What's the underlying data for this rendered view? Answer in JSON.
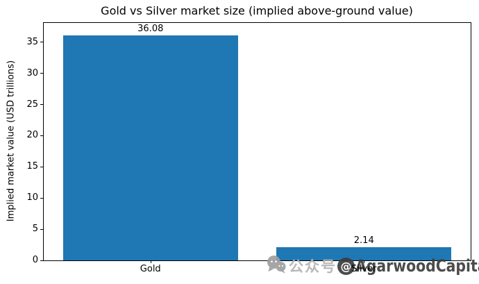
{
  "chart_data": {
    "type": "bar",
    "title": "Gold vs Silver market size (implied above-ground value)",
    "categories": [
      "Gold",
      "Silver"
    ],
    "values": [
      36.08,
      2.14
    ],
    "value_labels": [
      "36.08",
      "2.14"
    ],
    "xlabel": "",
    "ylabel": "Implied market value (USD trillions)",
    "ylim": [
      0,
      38.1
    ],
    "yticks": [
      0,
      5,
      10,
      15,
      20,
      25,
      30,
      35
    ],
    "bar_color": "#1f77b4",
    "grid": false,
    "legend": null,
    "layout": "single plot, black box spines, white background, value labels above bars"
  },
  "watermark": {
    "icon": "wechat-icon",
    "prefix": "公众号",
    "at": "@",
    "name": "AgarwoodCapital",
    "prefix_color": "#b3b3b3",
    "dark_color": "#3d3d3d",
    "icon_color": "#9f9f9f"
  }
}
